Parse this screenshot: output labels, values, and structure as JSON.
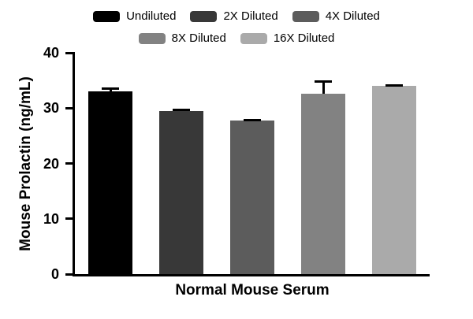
{
  "chart_data": {
    "type": "bar",
    "title": "",
    "xlabel": "Normal Mouse Serum",
    "ylabel": "Mouse Prolactin (ng/mL)",
    "ylim": [
      0,
      40
    ],
    "yticks": [
      0,
      10,
      20,
      30,
      40
    ],
    "grid": false,
    "legend_position": "top",
    "categories": [
      "Normal Mouse Serum"
    ],
    "series": [
      {
        "name": "Undiluted",
        "value": 33.0,
        "error": 0.7,
        "color": "#000000"
      },
      {
        "name": "2X Diluted",
        "value": 29.4,
        "error": 0.5,
        "color": "#383838"
      },
      {
        "name": "4X Diluted",
        "value": 27.8,
        "error": 0.2,
        "color": "#5c5c5c"
      },
      {
        "name": "8X Diluted",
        "value": 32.6,
        "error": 2.4,
        "color": "#828282"
      },
      {
        "name": "16X Diluted",
        "value": 34.0,
        "error": 0.3,
        "color": "#aaaaaa"
      }
    ],
    "legend_rows": [
      [
        "Undiluted",
        "2X Diluted",
        "4X Diluted"
      ],
      [
        "8X Diluted",
        "16X Diluted"
      ]
    ]
  }
}
